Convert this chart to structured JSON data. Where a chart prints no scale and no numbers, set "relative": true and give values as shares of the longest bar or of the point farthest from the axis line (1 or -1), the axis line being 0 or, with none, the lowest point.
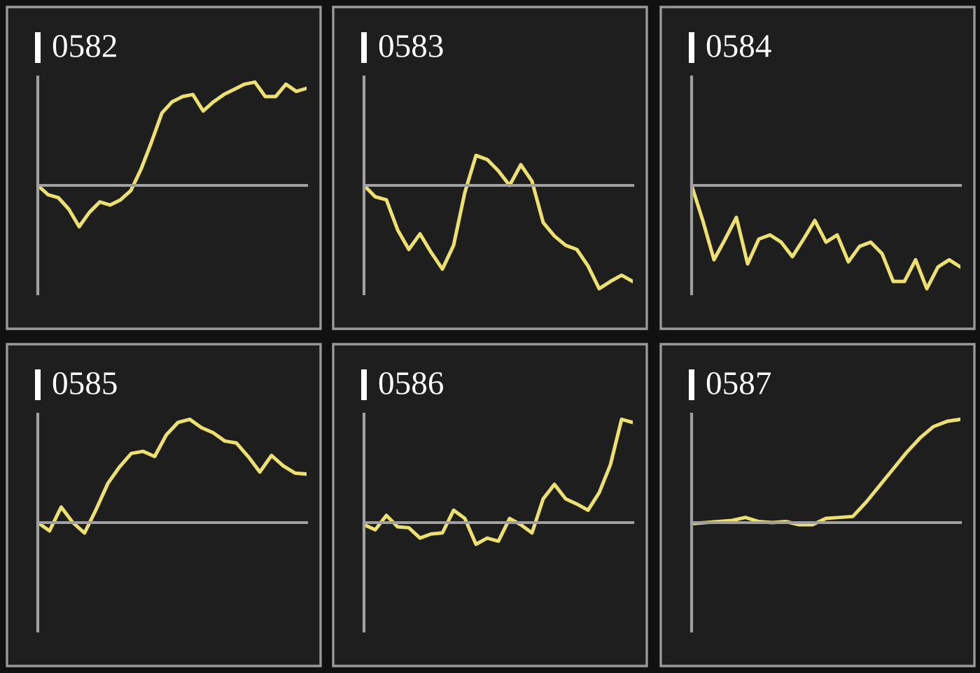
{
  "chart_data": [
    {
      "type": "line",
      "title": "0582",
      "relative": true,
      "color": "#ece070",
      "categories": [
        null,
        null,
        null,
        null,
        null,
        null,
        null,
        null,
        null,
        null,
        null,
        null,
        null,
        null,
        null,
        null,
        null,
        null,
        null,
        null,
        null,
        null,
        null,
        null,
        null,
        null,
        null
      ],
      "values": [
        0,
        -0.09,
        -0.12,
        -0.23,
        -0.4,
        -0.26,
        -0.16,
        -0.19,
        -0.14,
        -0.05,
        0.16,
        0.42,
        0.7,
        0.81,
        0.86,
        0.88,
        0.72,
        0.81,
        0.88,
        0.93,
        0.98,
        1,
        0.86,
        0.86,
        0.98,
        0.91,
        0.94
      ]
    },
    {
      "type": "line",
      "title": "0583",
      "relative": true,
      "color": "#ece070",
      "categories": [
        null,
        null,
        null,
        null,
        null,
        null,
        null,
        null,
        null,
        null,
        null,
        null,
        null,
        null,
        null,
        null,
        null,
        null,
        null,
        null,
        null,
        null,
        null,
        null,
        null
      ],
      "values": [
        0,
        -0.11,
        -0.14,
        -0.43,
        -0.62,
        -0.47,
        -0.65,
        -0.81,
        -0.58,
        -0.07,
        0.29,
        0.25,
        0.14,
        0,
        0.2,
        0.04,
        -0.36,
        -0.49,
        -0.58,
        -0.62,
        -0.78,
        -1,
        -0.93,
        -0.87,
        -0.93
      ]
    },
    {
      "type": "line",
      "title": "0584",
      "relative": true,
      "color": "#ece070",
      "categories": [
        null,
        null,
        null,
        null,
        null,
        null,
        null,
        null,
        null,
        null,
        null,
        null,
        null,
        null,
        null,
        null,
        null,
        null,
        null,
        null,
        null,
        null,
        null,
        null,
        null
      ],
      "values": [
        0,
        -0.34,
        -0.72,
        -0.52,
        -0.31,
        -0.76,
        -0.52,
        -0.48,
        -0.55,
        -0.69,
        -0.52,
        -0.34,
        -0.55,
        -0.48,
        -0.74,
        -0.59,
        -0.55,
        -0.66,
        -0.93,
        -0.93,
        -0.72,
        -1,
        -0.79,
        -0.72,
        -0.79
      ]
    },
    {
      "type": "line",
      "title": "0585",
      "relative": true,
      "color": "#ece070",
      "categories": [
        null,
        null,
        null,
        null,
        null,
        null,
        null,
        null,
        null,
        null,
        null,
        null,
        null,
        null,
        null,
        null,
        null,
        null,
        null,
        null,
        null,
        null,
        null,
        null
      ],
      "values": [
        0,
        -0.08,
        0.15,
        0,
        -0.1,
        0.13,
        0.38,
        0.54,
        0.67,
        0.69,
        0.64,
        0.85,
        0.97,
        1,
        0.92,
        0.87,
        0.79,
        0.77,
        0.64,
        0.49,
        0.65,
        0.55,
        0.48,
        0.47
      ]
    },
    {
      "type": "line",
      "title": "0586",
      "relative": true,
      "color": "#ece070",
      "categories": [
        null,
        null,
        null,
        null,
        null,
        null,
        null,
        null,
        null,
        null,
        null,
        null,
        null,
        null,
        null,
        null,
        null,
        null,
        null,
        null,
        null,
        null,
        null,
        null,
        null
      ],
      "values": [
        -0.02,
        -0.07,
        0.07,
        -0.04,
        -0.05,
        -0.15,
        -0.11,
        -0.1,
        0.12,
        0.04,
        -0.21,
        -0.15,
        -0.18,
        0.04,
        -0.02,
        -0.1,
        0.23,
        0.37,
        0.23,
        0.18,
        0.12,
        0.29,
        0.56,
        1,
        0.97
      ]
    },
    {
      "type": "line",
      "title": "0587",
      "relative": true,
      "color": "#ece070",
      "categories": [
        null,
        null,
        null,
        null,
        null,
        null,
        null,
        null,
        null,
        null,
        null,
        null,
        null,
        null,
        null,
        null,
        null,
        null,
        null,
        null,
        null
      ],
      "values": [
        -0.01,
        0,
        0.01,
        0.02,
        0.05,
        0.01,
        0,
        0.01,
        -0.02,
        -0.02,
        0.04,
        0.05,
        0.06,
        0.2,
        0.36,
        0.52,
        0.68,
        0.82,
        0.93,
        0.98,
        1
      ]
    }
  ]
}
